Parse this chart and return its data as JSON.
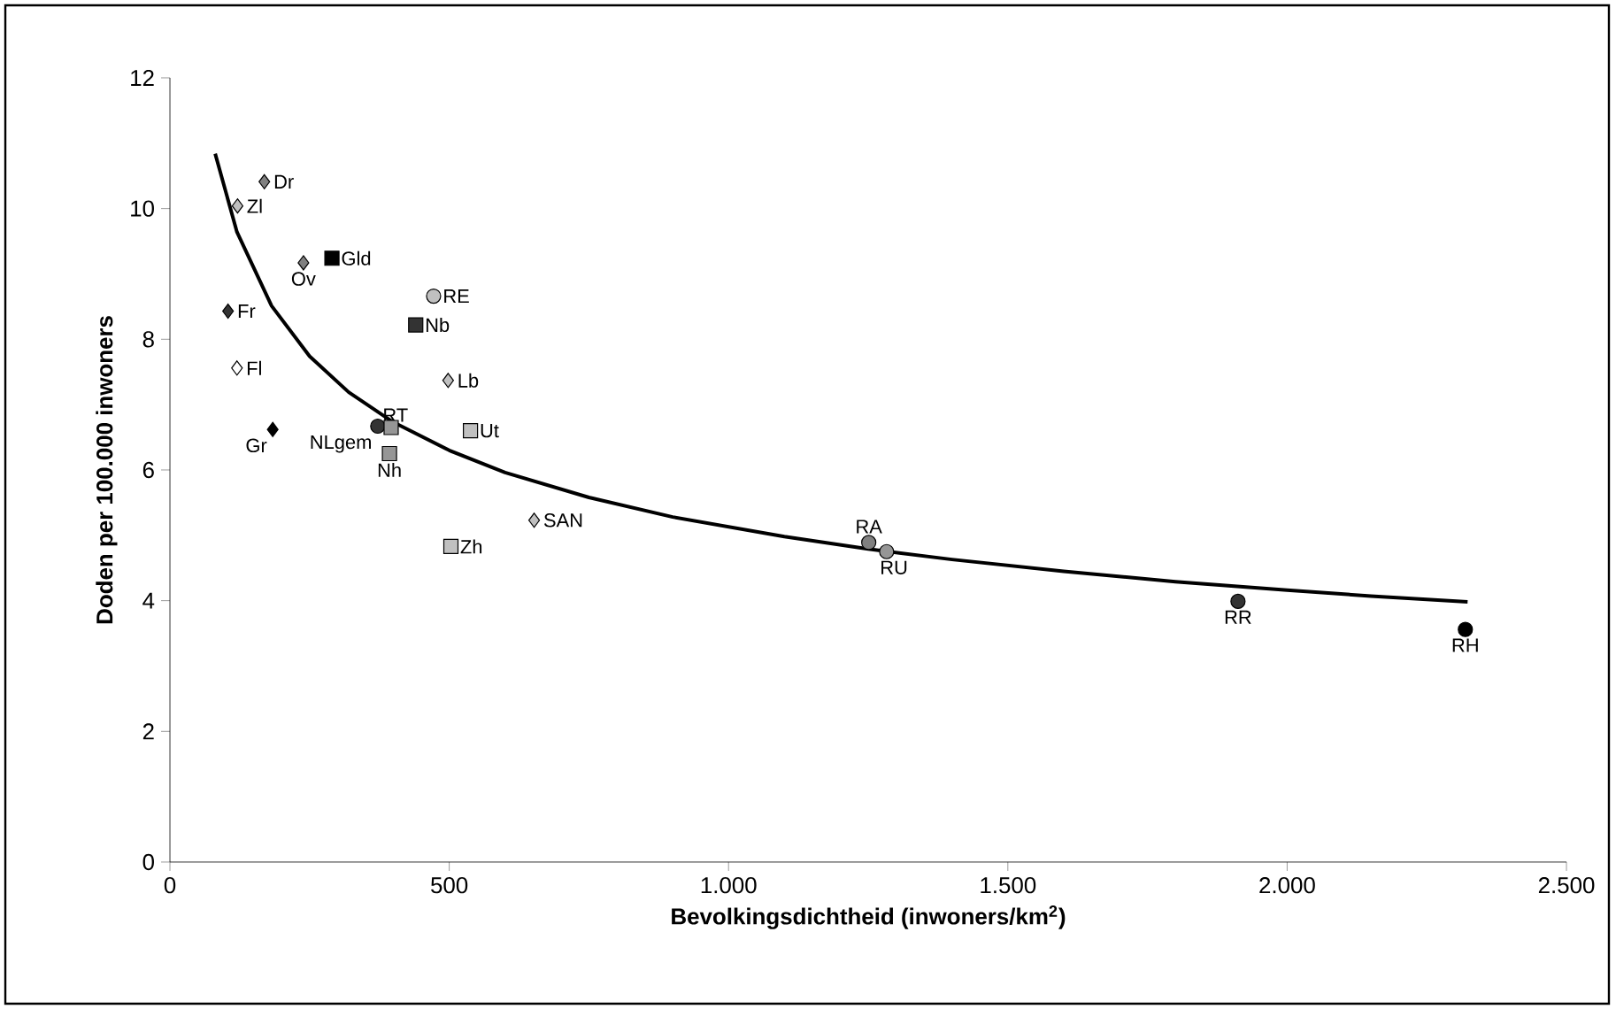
{
  "chart_data": {
    "type": "scatter",
    "xlabel": "Bevolkingsdichtheid (inwoners/km$^{2}$)",
    "ylabel": "Doden per 100.000 inwoners",
    "xlim": [
      0,
      2500
    ],
    "ylim": [
      0,
      12
    ],
    "xticks": [
      0,
      500,
      {
        "value": 1000,
        "label": "1.000"
      },
      {
        "value": 1500,
        "label": "1.500"
      },
      {
        "value": 2000,
        "label": "2.000"
      },
      {
        "value": 2500,
        "label": "2.500"
      }
    ],
    "yticks": [
      0,
      2,
      4,
      6,
      8,
      10,
      12
    ],
    "series": [
      {
        "name": "Dr",
        "color": "#808080",
        "marker": "diamond",
        "x": [
          169
        ],
        "values": [
          10.41
        ]
      },
      {
        "name": "Zl",
        "color": "#c0c0c0",
        "marker": "diamond",
        "x": [
          121
        ],
        "values": [
          10.04
        ]
      },
      {
        "name": "Ov",
        "color": "#808080",
        "marker": "diamond",
        "x": [
          239
        ],
        "values": [
          9.17
        ]
      },
      {
        "name": "Gld",
        "color": "#000000",
        "marker": "square",
        "x": [
          290
        ],
        "values": [
          9.24
        ]
      },
      {
        "name": "RE",
        "color": "#c0c0c0",
        "marker": "circle",
        "x": [
          472
        ],
        "values": [
          8.66
        ]
      },
      {
        "name": "Nb",
        "color": "#333333",
        "marker": "square",
        "x": [
          440
        ],
        "values": [
          8.22
        ]
      },
      {
        "name": "Fr",
        "color": "#333333",
        "marker": "diamond",
        "x": [
          104
        ],
        "values": [
          8.43
        ]
      },
      {
        "name": "Fl",
        "color": "#ffffff",
        "marker": "diamond",
        "x": [
          120
        ],
        "values": [
          7.56
        ]
      },
      {
        "name": "Lb",
        "color": "#c0c0c0",
        "marker": "diamond",
        "x": [
          498
        ],
        "values": [
          7.37
        ]
      },
      {
        "name": "Gr",
        "color": "#000000",
        "marker": "diamond",
        "x": [
          184
        ],
        "values": [
          6.62
        ]
      },
      {
        "name": "NLgem",
        "color": "#333333",
        "marker": "circle",
        "x": [
          372
        ],
        "values": [
          6.67
        ]
      },
      {
        "name": "RT",
        "color": "#969696",
        "marker": "square",
        "x": [
          396
        ],
        "values": [
          6.65
        ]
      },
      {
        "name": "Ut",
        "color": "#c0c0c0",
        "marker": "square",
        "x": [
          538
        ],
        "values": [
          6.6
        ]
      },
      {
        "name": "Nh",
        "color": "#969696",
        "marker": "square",
        "x": [
          393
        ],
        "values": [
          6.25
        ]
      },
      {
        "name": "SAN",
        "color": "#c0c0c0",
        "marker": "diamond",
        "x": [
          652
        ],
        "values": [
          5.23
        ]
      },
      {
        "name": "Zh",
        "color": "#c0c0c0",
        "marker": "square",
        "x": [
          503
        ],
        "values": [
          4.83
        ]
      },
      {
        "name": "RA",
        "color": "#808080",
        "marker": "circle",
        "x": [
          1251
        ],
        "values": [
          4.89
        ]
      },
      {
        "name": "RU",
        "color": "#969696",
        "marker": "circle",
        "x": [
          1283
        ],
        "values": [
          4.75
        ]
      },
      {
        "name": "RR",
        "color": "#333333",
        "marker": "circle",
        "x": [
          1912
        ],
        "values": [
          3.99
        ]
      },
      {
        "name": "RH",
        "color": "#000000",
        "marker": "circle",
        "x": [
          2319
        ],
        "values": [
          3.56
        ]
      },
      {
        "type": "line",
        "color": "#000000",
        "marker": "none",
        "x": [
          81,
          120,
          182,
          250,
          320,
          400,
          500,
          600,
          750,
          900,
          1100,
          1250,
          1400,
          1600,
          1800,
          2000,
          2150,
          2323
        ],
        "values": [
          10.84,
          9.64,
          8.51,
          7.74,
          7.19,
          6.73,
          6.3,
          5.96,
          5.58,
          5.28,
          4.98,
          4.79,
          4.63,
          4.45,
          4.29,
          4.16,
          4.07,
          3.98
        ]
      }
    ]
  }
}
